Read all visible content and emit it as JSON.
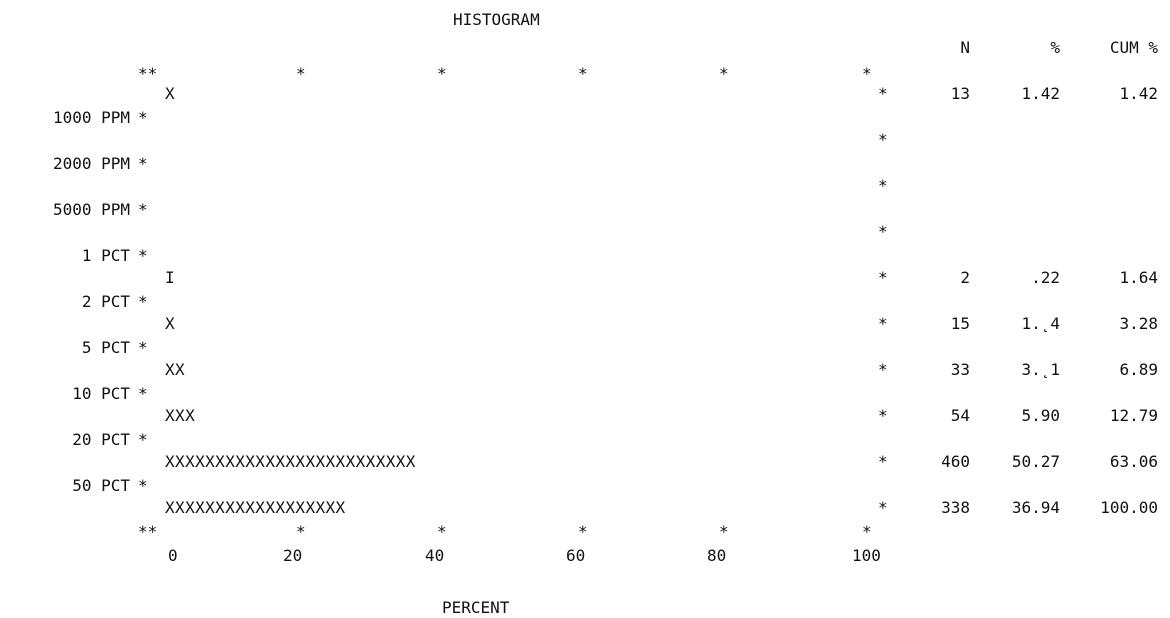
{
  "chart_data": {
    "type": "bar",
    "orientation": "horizontal",
    "title": "HISTOGRAM",
    "xlabel": "PERCENT",
    "xlim": [
      0,
      100
    ],
    "xticks": [
      "0",
      "20",
      "40",
      "60",
      "80",
      "100"
    ],
    "bin_boundaries": [
      "1000 PPM",
      "2000 PPM",
      "5000 PPM",
      "1 PCT",
      "2 PCT",
      "5 PCT",
      "10 PCT",
      "20 PCT",
      "50 PCT"
    ],
    "columns": [
      "N",
      "%",
      "CUM %"
    ],
    "rows": [
      {
        "bar": "X",
        "n": "13",
        "pct": "1.42",
        "cum": "1.42"
      },
      {
        "bar": "",
        "n": "",
        "pct": "",
        "cum": ""
      },
      {
        "bar": "",
        "n": "",
        "pct": "",
        "cum": ""
      },
      {
        "bar": "",
        "n": "",
        "pct": "",
        "cum": ""
      },
      {
        "bar": "I",
        "n": "2",
        "pct": ".22",
        "cum": "1.64"
      },
      {
        "bar": "X",
        "n": "15",
        "pct": "1.˛4",
        "cum": "3.28"
      },
      {
        "bar": "XX",
        "n": "33",
        "pct": "3.˛1",
        "cum": "6.89"
      },
      {
        "bar": "XXX",
        "n": "54",
        "pct": "5.90",
        "cum": "12.79"
      },
      {
        "bar": "XXXXXXXXXXXXXXXXXXXXXXXXX",
        "n": "460",
        "pct": "50.27",
        "cum": "63.06"
      },
      {
        "bar": "XXXXXXXXXXXXXXXXXX",
        "n": "338",
        "pct": "36.94",
        "cum": "100.00"
      }
    ]
  }
}
